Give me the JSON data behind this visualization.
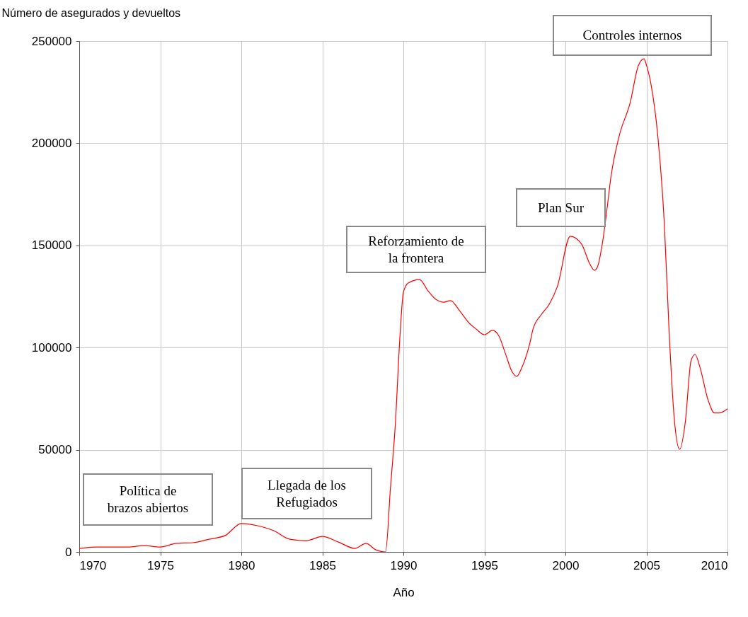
{
  "chart_data": {
    "type": "line",
    "xlabel": "Año",
    "ylabel": "Número de asegurados y devueltos",
    "annotations": [
      "Política de\nbrazos abiertos",
      "Llegada de los\nRefugiados",
      "Reforzamiento de\nla frontera",
      "Plan Sur",
      "Controles internos"
    ],
    "x": [
      1970,
      1971,
      1973,
      1974,
      1975,
      1976,
      1977,
      1978,
      1979,
      1980,
      1981,
      1982,
      1983,
      1984,
      1985,
      1986,
      1987,
      1987.7,
      1988.3,
      1988.9,
      1989.2,
      1989.5,
      1989.8,
      1990,
      1990.3,
      1991,
      1991.5,
      1992,
      1992.5,
      1992.9,
      1993.5,
      1994,
      1994.5,
      1995,
      1995.5,
      1995.9,
      1996.3,
      1996.7,
      1997,
      1997.3,
      1997.8,
      1998,
      1998.5,
      1999,
      1999.5,
      2000.3,
      2001,
      2001.5,
      2001.8,
      2002,
      2002.3,
      2002.6,
      2002.8,
      2003.3,
      2004.0,
      2004.5,
      2004.85,
      2005.0,
      2005.3,
      2005.7,
      2006.1,
      2006.4,
      2006.7,
      2007.05,
      2007.4,
      2007.75,
      2008.0,
      2008.3,
      2008.8,
      2009.2,
      2009.5,
      2010
    ],
    "series": [
      {
        "color": "#ff0000",
        "values": [
          1700,
          2400,
          2400,
          3100,
          2400,
          4200,
          4500,
          6200,
          8000,
          13900,
          12800,
          10400,
          6200,
          5500,
          7600,
          4800,
          1700,
          4200,
          1000,
          0,
          31000,
          62000,
          107000,
          127000,
          131600,
          133300,
          128000,
          123600,
          122200,
          123000,
          117700,
          112500,
          109000,
          106300,
          108400,
          105600,
          97000,
          88300,
          85900,
          90000,
          102000,
          109000,
          116000,
          121200,
          129800,
          154500,
          150600,
          141000,
          137800,
          140000,
          152000,
          170000,
          183000,
          203000,
          220000,
          238000,
          241300,
          238200,
          228000,
          203600,
          161000,
          107700,
          66800,
          50200,
          63700,
          93500,
          96600,
          90400,
          74400,
          68000,
          68000,
          70000
        ]
      }
    ],
    "xlim": [
      1970,
      2010
    ],
    "xticks": [
      1970,
      1975,
      1980,
      1985,
      1990,
      1995,
      2000,
      2005,
      2010
    ],
    "ylim": [
      0,
      250000
    ],
    "yticks": [
      0,
      50000,
      100000,
      150000,
      200000,
      250000
    ],
    "grid": true,
    "marker": "none",
    "line_style": "solid"
  }
}
